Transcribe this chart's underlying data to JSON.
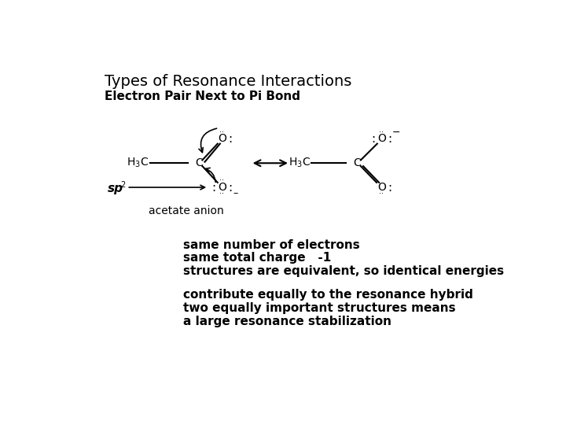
{
  "title": "Types of Resonance Interactions",
  "subtitle": "Electron Pair Next to Pi Bond",
  "bg_color": "#ffffff",
  "title_fontsize": 14,
  "subtitle_fontsize": 11,
  "body_fontsize": 11,
  "body_lines": [
    "same number of electrons",
    "same total charge   -1",
    "structures are equivalent, so identical energies"
  ],
  "body_lines2": [
    "contribute equally to the resonance hybrid",
    "two equally important structures means",
    "a large resonance stabilization"
  ],
  "sp2_label": "sp",
  "acetate_label": "acetate anion"
}
